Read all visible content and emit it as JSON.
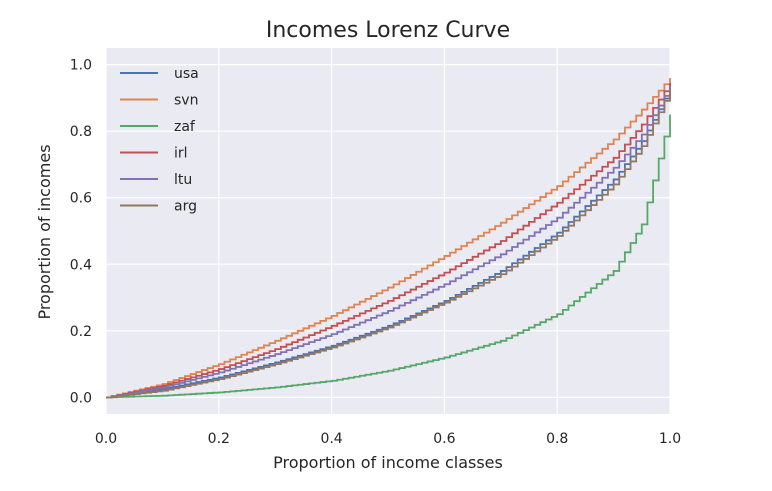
{
  "chart_data": {
    "type": "line",
    "title": "Incomes Lorenz Curve",
    "xlabel": "Proportion of income classes",
    "ylabel": "Proportion of incomes",
    "xlim": [
      0.0,
      1.0
    ],
    "ylim": [
      -0.05,
      1.05
    ],
    "xticks": [
      0.0,
      0.2,
      0.4,
      0.6,
      0.8,
      1.0
    ],
    "xtick_labels": [
      "0.0",
      "0.2",
      "0.4",
      "0.6",
      "0.8",
      "1.0"
    ],
    "yticks": [
      0.0,
      0.2,
      0.4,
      0.6,
      0.8,
      1.0
    ],
    "ytick_labels": [
      "0.0",
      "0.2",
      "0.4",
      "0.6",
      "0.8",
      "1.0"
    ],
    "grid": true,
    "legend_position": "top-left",
    "step": true,
    "x": [
      0.0,
      0.1,
      0.2,
      0.3,
      0.4,
      0.5,
      0.6,
      0.7,
      0.8,
      0.9,
      0.95,
      1.0
    ],
    "series": [
      {
        "name": "usa",
        "color": "#4c72b0",
        "values": [
          0.0,
          0.025,
          0.06,
          0.105,
          0.155,
          0.215,
          0.29,
          0.38,
          0.495,
          0.655,
          0.77,
          0.93
        ]
      },
      {
        "name": "svn",
        "color": "#dd8452",
        "values": [
          0.0,
          0.04,
          0.1,
          0.17,
          0.245,
          0.33,
          0.425,
          0.525,
          0.635,
          0.775,
          0.865,
          0.96
        ]
      },
      {
        "name": "zaf",
        "color": "#55a868",
        "values": [
          0.0,
          0.005,
          0.015,
          0.03,
          0.05,
          0.08,
          0.12,
          0.17,
          0.25,
          0.38,
          0.52,
          0.85
        ]
      },
      {
        "name": "irl",
        "color": "#c44e52",
        "values": [
          0.0,
          0.035,
          0.085,
          0.145,
          0.215,
          0.29,
          0.375,
          0.47,
          0.585,
          0.72,
          0.82,
          0.945
        ]
      },
      {
        "name": "ltu",
        "color": "#8172b3",
        "values": [
          0.0,
          0.03,
          0.075,
          0.13,
          0.19,
          0.26,
          0.34,
          0.43,
          0.54,
          0.69,
          0.79,
          0.935
        ]
      },
      {
        "name": "arg",
        "color": "#937860",
        "values": [
          0.0,
          0.02,
          0.055,
          0.1,
          0.15,
          0.21,
          0.285,
          0.37,
          0.485,
          0.64,
          0.755,
          0.925
        ]
      }
    ]
  },
  "style": {
    "plot_bg": "#eaeaf2",
    "grid_color": "#ffffff",
    "text_color": "#262626"
  }
}
